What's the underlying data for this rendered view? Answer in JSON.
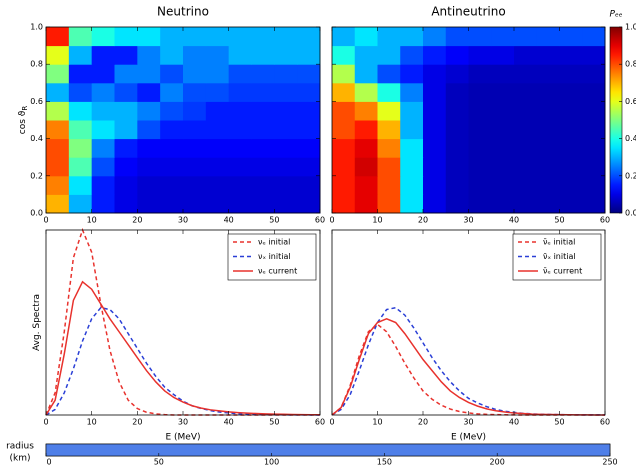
{
  "chart_data": [
    {
      "type": "heatmap",
      "title": "Neutrino",
      "ylabel": "cos ϑ",
      "ylabel_sub": "R",
      "colormap": "jet",
      "xlim": [
        0,
        60
      ],
      "xticks": [
        0,
        10,
        20,
        30,
        40,
        50,
        60
      ],
      "ylim": [
        0,
        1
      ],
      "yticks": [
        {
          "value": 0,
          "label": "0.0"
        },
        0.2,
        0.4,
        0.6,
        0.8,
        {
          "value": 1,
          "label": "1.0"
        }
      ],
      "show_ytick_labels": true,
      "xbins": [
        0,
        5,
        10,
        15,
        20,
        25,
        30,
        35,
        40,
        45,
        50,
        55,
        60
      ],
      "ybins": [
        0,
        0.1,
        0.2,
        0.3,
        0.4,
        0.5,
        0.6,
        0.7,
        0.8,
        0.9,
        1
      ],
      "z": [
        [
          0.7,
          0.3,
          0.15,
          0.1,
          0.08,
          0.08,
          0.08,
          0.08,
          0.08,
          0.08,
          0.08,
          0.08
        ],
        [
          0.75,
          0.35,
          0.15,
          0.1,
          0.08,
          0.08,
          0.08,
          0.08,
          0.08,
          0.08,
          0.08,
          0.08
        ],
        [
          0.8,
          0.45,
          0.2,
          0.12,
          0.1,
          0.1,
          0.1,
          0.1,
          0.1,
          0.1,
          0.1,
          0.1
        ],
        [
          0.8,
          0.5,
          0.25,
          0.15,
          0.12,
          0.12,
          0.12,
          0.12,
          0.12,
          0.12,
          0.12,
          0.12
        ],
        [
          0.75,
          0.45,
          0.35,
          0.3,
          0.2,
          0.15,
          0.15,
          0.15,
          0.15,
          0.15,
          0.15,
          0.15
        ],
        [
          0.55,
          0.35,
          0.3,
          0.3,
          0.25,
          0.2,
          0.18,
          0.15,
          0.15,
          0.15,
          0.15,
          0.15
        ],
        [
          0.3,
          0.2,
          0.25,
          0.2,
          0.15,
          0.25,
          0.2,
          0.2,
          0.18,
          0.18,
          0.18,
          0.18
        ],
        [
          0.5,
          0.15,
          0.15,
          0.25,
          0.25,
          0.2,
          0.25,
          0.25,
          0.2,
          0.2,
          0.2,
          0.2
        ],
        [
          0.6,
          0.3,
          0.15,
          0.15,
          0.25,
          0.3,
          0.25,
          0.25,
          0.3,
          0.3,
          0.3,
          0.3
        ],
        [
          0.85,
          0.45,
          0.4,
          0.35,
          0.35,
          0.3,
          0.3,
          0.3,
          0.3,
          0.3,
          0.3,
          0.3
        ]
      ]
    },
    {
      "type": "heatmap",
      "title": "Antineutrino",
      "colormap": "jet",
      "xlim": [
        0,
        60
      ],
      "xticks": [
        0,
        10,
        20,
        30,
        40,
        50,
        60
      ],
      "ylim": [
        0,
        1
      ],
      "yticks": [
        0,
        0.2,
        0.4,
        0.6,
        0.8,
        1
      ],
      "show_ytick_labels": false,
      "xbins": [
        0,
        5,
        10,
        15,
        20,
        25,
        30,
        35,
        40,
        45,
        50,
        55,
        60
      ],
      "ybins": [
        0,
        0.1,
        0.2,
        0.3,
        0.4,
        0.5,
        0.6,
        0.7,
        0.8,
        0.9,
        1
      ],
      "z": [
        [
          0.85,
          0.9,
          0.8,
          0.35,
          0.1,
          0.06,
          0.05,
          0.05,
          0.05,
          0.05,
          0.05,
          0.05
        ],
        [
          0.85,
          0.9,
          0.8,
          0.35,
          0.1,
          0.06,
          0.05,
          0.05,
          0.05,
          0.05,
          0.05,
          0.05
        ],
        [
          0.85,
          0.92,
          0.8,
          0.35,
          0.1,
          0.06,
          0.05,
          0.05,
          0.05,
          0.05,
          0.05,
          0.05
        ],
        [
          0.85,
          0.9,
          0.75,
          0.35,
          0.1,
          0.06,
          0.05,
          0.05,
          0.05,
          0.05,
          0.05,
          0.05
        ],
        [
          0.8,
          0.85,
          0.7,
          0.3,
          0.1,
          0.06,
          0.05,
          0.05,
          0.05,
          0.05,
          0.05,
          0.05
        ],
        [
          0.8,
          0.75,
          0.6,
          0.3,
          0.1,
          0.06,
          0.05,
          0.05,
          0.05,
          0.05,
          0.05,
          0.05
        ],
        [
          0.7,
          0.55,
          0.4,
          0.25,
          0.1,
          0.06,
          0.05,
          0.05,
          0.05,
          0.05,
          0.05,
          0.05
        ],
        [
          0.55,
          0.3,
          0.2,
          0.15,
          0.1,
          0.08,
          0.06,
          0.06,
          0.06,
          0.06,
          0.06,
          0.06
        ],
        [
          0.4,
          0.3,
          0.3,
          0.2,
          0.15,
          0.12,
          0.1,
          0.1,
          0.08,
          0.08,
          0.08,
          0.08
        ],
        [
          0.3,
          0.35,
          0.3,
          0.3,
          0.25,
          0.2,
          0.2,
          0.2,
          0.2,
          0.2,
          0.2,
          0.2
        ]
      ],
      "colorbar": {
        "label": "Pₑₑ",
        "lim": [
          0,
          1
        ],
        "ticks": [
          {
            "value": 0,
            "label": "0.0"
          },
          0.2,
          0.4,
          0.6,
          0.8,
          {
            "value": 1,
            "label": "1.0"
          }
        ]
      }
    },
    {
      "type": "line",
      "xlabel": "E (MeV)",
      "ylabel": "Avg. Spectra",
      "legend": "upper right",
      "xlim": [
        0,
        60
      ],
      "xticks": [
        0,
        10,
        20,
        30,
        40,
        50,
        60
      ],
      "ylim": [
        0,
        1
      ],
      "x": [
        0,
        2,
        4,
        6,
        8,
        10,
        12,
        14,
        16,
        18,
        20,
        22,
        24,
        26,
        28,
        30,
        32,
        34,
        36,
        38,
        40,
        42,
        44,
        46,
        48,
        50,
        52,
        54,
        56,
        58,
        60
      ],
      "series": [
        {
          "name": "νₑ initial",
          "color": "#e8322d",
          "dash": true,
          "values": [
            0,
            0.12,
            0.45,
            0.85,
            1.0,
            0.88,
            0.6,
            0.35,
            0.18,
            0.08,
            0.035,
            0.015,
            0.006,
            0.002,
            0,
            0,
            0,
            0,
            0,
            0,
            0,
            0,
            0,
            0,
            0,
            0,
            0,
            0,
            0,
            0,
            0
          ]
        },
        {
          "name": "νₓ initial",
          "color": "#2a3fd6",
          "dash": true,
          "values": [
            0,
            0.03,
            0.12,
            0.25,
            0.4,
            0.52,
            0.58,
            0.57,
            0.52,
            0.44,
            0.36,
            0.28,
            0.21,
            0.15,
            0.11,
            0.075,
            0.05,
            0.035,
            0.024,
            0.016,
            0.011,
            0.007,
            0.005,
            0.003,
            0.002,
            0.0015,
            0.001,
            0.0007,
            0.0005,
            0.0003,
            0.0002
          ]
        },
        {
          "name": "νₑ current",
          "color": "#e8322d",
          "dash": false,
          "values": [
            0,
            0.08,
            0.33,
            0.62,
            0.72,
            0.68,
            0.6,
            0.52,
            0.45,
            0.38,
            0.31,
            0.24,
            0.18,
            0.13,
            0.095,
            0.07,
            0.05,
            0.037,
            0.028,
            0.022,
            0.017,
            0.013,
            0.01,
            0.008,
            0.006,
            0.005,
            0.004,
            0.003,
            0.002,
            0.0015,
            0.001
          ]
        }
      ]
    },
    {
      "type": "line",
      "xlabel": "E (MeV)",
      "legend": "upper right",
      "xlim": [
        0,
        60
      ],
      "xticks": [
        0,
        10,
        20,
        30,
        40,
        50,
        60
      ],
      "ylim": [
        0,
        1
      ],
      "x": [
        0,
        2,
        4,
        6,
        8,
        10,
        12,
        14,
        16,
        18,
        20,
        22,
        24,
        26,
        28,
        30,
        32,
        34,
        36,
        38,
        40,
        42,
        44,
        46,
        48,
        50,
        52,
        54,
        56,
        58,
        60
      ],
      "series": [
        {
          "name": "ν̄ₑ initial",
          "color": "#e8322d",
          "dash": true,
          "values": [
            0,
            0.04,
            0.16,
            0.32,
            0.45,
            0.49,
            0.45,
            0.37,
            0.28,
            0.2,
            0.13,
            0.085,
            0.053,
            0.032,
            0.019,
            0.011,
            0.006,
            0.0035,
            0.002,
            0.001,
            0.0005,
            0,
            0,
            0,
            0,
            0,
            0,
            0,
            0,
            0,
            0
          ]
        },
        {
          "name": "ν̄ₓ initial",
          "color": "#2a3fd6",
          "dash": true,
          "values": [
            0,
            0.03,
            0.11,
            0.24,
            0.38,
            0.5,
            0.57,
            0.58,
            0.54,
            0.47,
            0.39,
            0.31,
            0.24,
            0.18,
            0.13,
            0.09,
            0.065,
            0.045,
            0.03,
            0.02,
            0.014,
            0.009,
            0.006,
            0.004,
            0.003,
            0.002,
            0.0014,
            0.001,
            0.0007,
            0.0005,
            0.0003
          ]
        },
        {
          "name": "ν̄ₑ current",
          "color": "#e8322d",
          "dash": false,
          "values": [
            0,
            0.04,
            0.15,
            0.3,
            0.44,
            0.5,
            0.52,
            0.5,
            0.44,
            0.37,
            0.3,
            0.24,
            0.18,
            0.13,
            0.095,
            0.068,
            0.048,
            0.033,
            0.023,
            0.016,
            0.011,
            0.008,
            0.005,
            0.0035,
            0.0025,
            0.0018,
            0.0012,
            0.0008,
            0.0005,
            0.0003,
            0.0002
          ]
        }
      ]
    }
  ],
  "slider": {
    "label": [
      "radius",
      "(km)"
    ],
    "xlim": [
      0,
      250
    ],
    "xticks": [
      0,
      50,
      100,
      150,
      200,
      250
    ],
    "value": 250,
    "color": "#4f7fe8"
  }
}
